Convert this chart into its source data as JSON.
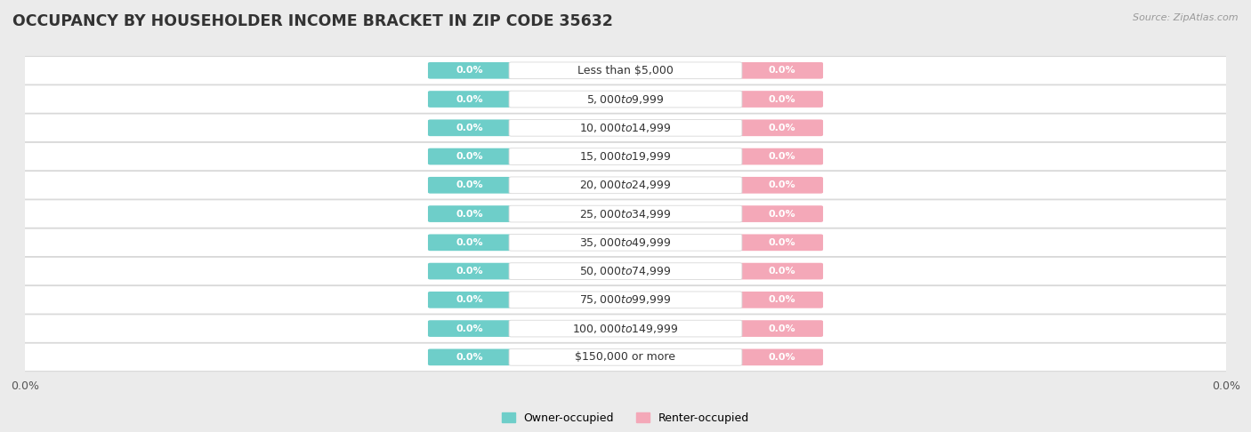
{
  "title": "OCCUPANCY BY HOUSEHOLDER INCOME BRACKET IN ZIP CODE 35632",
  "source": "Source: ZipAtlas.com",
  "categories": [
    "Less than $5,000",
    "$5,000 to $9,999",
    "$10,000 to $14,999",
    "$15,000 to $19,999",
    "$20,000 to $24,999",
    "$25,000 to $34,999",
    "$35,000 to $49,999",
    "$50,000 to $74,999",
    "$75,000 to $99,999",
    "$100,000 to $149,999",
    "$150,000 or more"
  ],
  "owner_values": [
    0.0,
    0.0,
    0.0,
    0.0,
    0.0,
    0.0,
    0.0,
    0.0,
    0.0,
    0.0,
    0.0
  ],
  "renter_values": [
    0.0,
    0.0,
    0.0,
    0.0,
    0.0,
    0.0,
    0.0,
    0.0,
    0.0,
    0.0,
    0.0
  ],
  "owner_color": "#6ecec9",
  "renter_color": "#f4a8b8",
  "owner_label": "Owner-occupied",
  "renter_label": "Renter-occupied",
  "background_color": "#ebebeb",
  "row_color": "#ffffff",
  "row_edge_color": "#d8d8d8",
  "value_label_color": "#ffffff",
  "category_text_color": "#333333",
  "title_color": "#333333",
  "source_color": "#999999",
  "axis_tick_color": "#555555",
  "title_fontsize": 12.5,
  "source_fontsize": 8,
  "bar_fontsize": 8,
  "cat_fontsize": 9,
  "legend_fontsize": 9,
  "axis_fontsize": 9
}
